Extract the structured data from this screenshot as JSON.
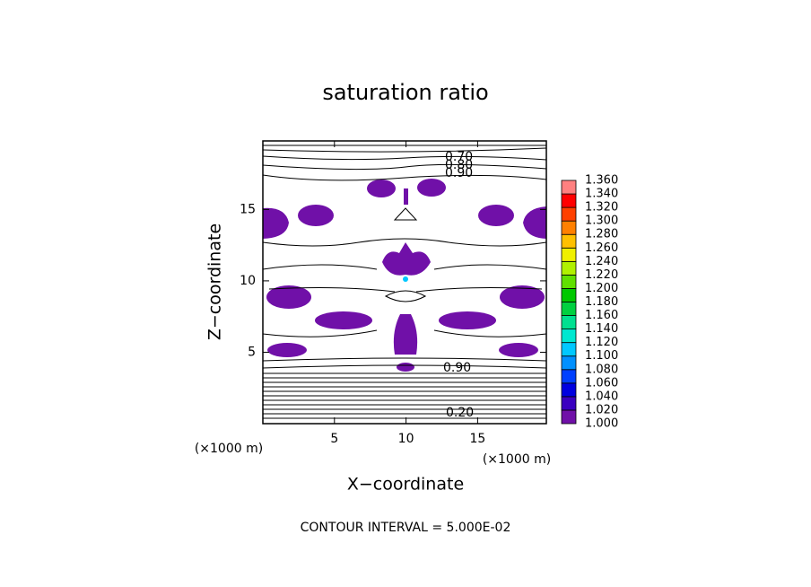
{
  "chart_data": {
    "type": "contour",
    "title": "saturation ratio",
    "x_label": "X−coordinate",
    "y_label": "Z−coordinate",
    "x_unit_labels": [
      "(×1000 m)",
      "(×1000 m)"
    ],
    "footer": "CONTOUR INTERVAL = 5.000E-02",
    "xlim": [
      0,
      19.8
    ],
    "ylim": [
      0,
      19.8
    ],
    "xticks": [
      5,
      10,
      15
    ],
    "yticks": [
      5,
      10,
      15
    ],
    "contour_labels": [
      {
        "value": 0.7,
        "label": "0.70"
      },
      {
        "value": 0.8,
        "label": "0.80"
      },
      {
        "value": 0.9,
        "label": "0.90"
      },
      {
        "value": 0.9,
        "label": "0.90"
      },
      {
        "value": 0.2,
        "label": "0.20"
      }
    ],
    "colorbar": {
      "levels": [
        {
          "value": 1.0,
          "label": "1.000"
        },
        {
          "value": 1.02,
          "label": "1.020"
        },
        {
          "value": 1.04,
          "label": "1.040"
        },
        {
          "value": 1.06,
          "label": "1.060"
        },
        {
          "value": 1.08,
          "label": "1.080"
        },
        {
          "value": 1.1,
          "label": "1.100"
        },
        {
          "value": 1.12,
          "label": "1.120"
        },
        {
          "value": 1.14,
          "label": "1.140"
        },
        {
          "value": 1.16,
          "label": "1.160"
        },
        {
          "value": 1.18,
          "label": "1.180"
        },
        {
          "value": 1.2,
          "label": "1.200"
        },
        {
          "value": 1.22,
          "label": "1.220"
        },
        {
          "value": 1.24,
          "label": "1.240"
        },
        {
          "value": 1.26,
          "label": "1.260"
        },
        {
          "value": 1.28,
          "label": "1.280"
        },
        {
          "value": 1.3,
          "label": "1.300"
        },
        {
          "value": 1.32,
          "label": "1.320"
        },
        {
          "value": 1.34,
          "label": "1.340"
        },
        {
          "value": 1.36,
          "label": "1.360"
        }
      ],
      "colors": [
        "#7010a8",
        "#3a00c0",
        "#0000e0",
        "#0040ff",
        "#0090ff",
        "#00c8ff",
        "#00e8d0",
        "#00e090",
        "#00d040",
        "#00c800",
        "#60e000",
        "#b0f000",
        "#f0f000",
        "#ffc000",
        "#ff8000",
        "#ff4000",
        "#ff0000",
        "#ff8080"
      ]
    }
  }
}
